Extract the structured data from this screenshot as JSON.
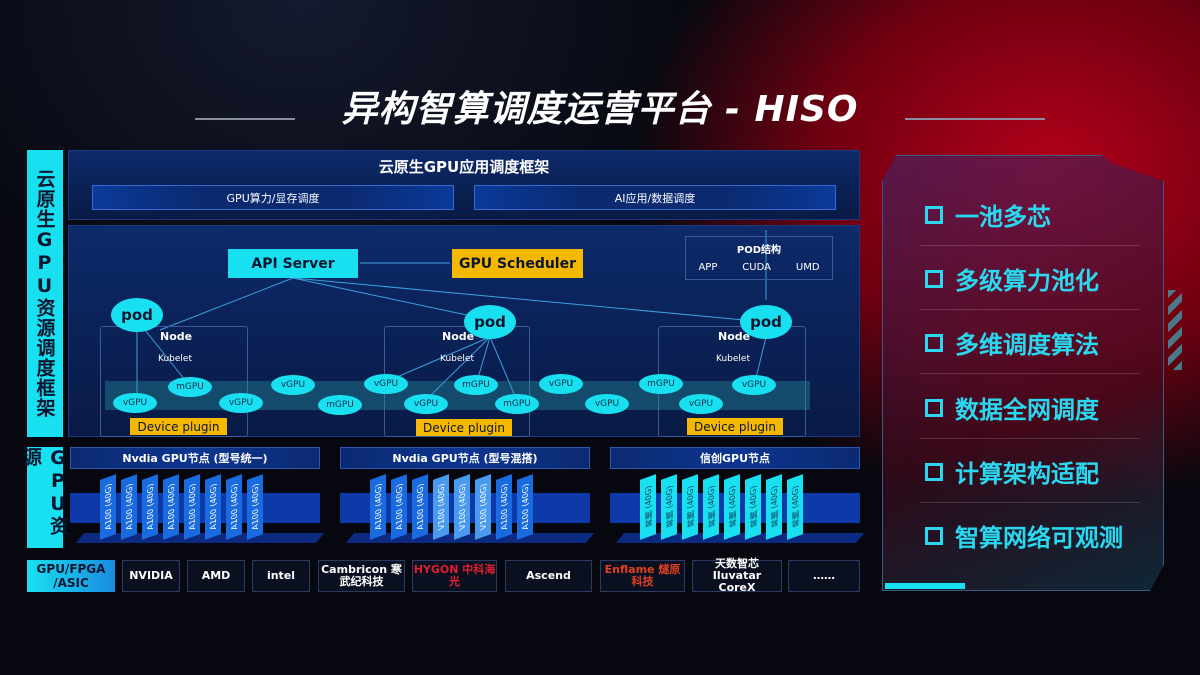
{
  "title": "异构智算调度运营平台 - HISO",
  "framework": {
    "side_label": "云原生GPU资源调度框架",
    "header": "云原生GPU应用调度框架",
    "sub_left": "GPU算力/显存调度",
    "sub_right": "AI应用/数据调度",
    "api_server": "API Server",
    "gpu_scheduler": "GPU Scheduler",
    "pod_struct": {
      "title": "POD结构",
      "items": [
        "APP",
        "CUDA",
        "UMD"
      ]
    },
    "pod": "pod",
    "node": "Node",
    "kubelet": "Kubelet",
    "device_plugin": "Device plugin",
    "gpus": [
      "vGPU",
      "mGPU",
      "vGPU",
      "vGPU",
      "mGPU",
      "vGPU",
      "vGPU",
      "mGPU",
      "mGPU",
      "vGPU",
      "vGPU",
      "mGPU",
      "vGPU",
      "vGPU"
    ]
  },
  "resources": {
    "side_label": "GPU资源",
    "nodes": [
      {
        "title": "Nvdia GPU节点 (型号统一)",
        "cards": [
          "A100 (40G)",
          "A100 (40G)",
          "A100 (40G)",
          "A100 (40G)",
          "A100 (40G)",
          "A100 (40G)",
          "A100 (40G)",
          "A100 (40G)"
        ]
      },
      {
        "title": "Nvdia GPU节点 (型号混搭)",
        "cards": [
          "A100 (40G)",
          "A100 (40G)",
          "A100 (40G)",
          "V100 (40G)",
          "V100 (40G)",
          "V100 (40G)",
          "A100 (40G)",
          "A100 (40G)"
        ]
      },
      {
        "title": "信创GPU节点",
        "cards": [
          "昇腾 (40G)",
          "昇腾 (40G)",
          "昇腾 (40G)",
          "昇腾 (40G)",
          "昇腾 (40G)",
          "昇腾 (40G)",
          "昇腾 (40G)",
          "昇腾 (40G)"
        ]
      }
    ]
  },
  "vendors": {
    "label": "GPU/FPGA /ASIC",
    "logos": [
      "NVIDIA",
      "AMD",
      "intel",
      "Cambricon 寒武纪科技",
      "HYGON 中科海光",
      "Ascend",
      "Enflame 燧原科技",
      "天数智芯 Iluvatar CoreX",
      "……"
    ]
  },
  "features": [
    "一池多芯",
    "多级算力池化",
    "多维调度算法",
    "数据全网调度",
    "计算架构适配",
    "智算网络可观测"
  ],
  "colors": {
    "cyan": "#19e0f0",
    "orange": "#f5b800",
    "blue": "#0d2a6a",
    "red": "#b3001a"
  }
}
